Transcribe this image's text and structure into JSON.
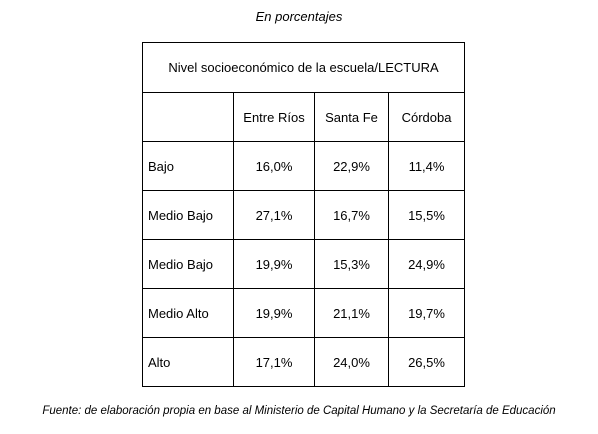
{
  "caption": "En porcentajes",
  "table": {
    "title": "Nivel socioeconómico de la escuela/LECTURA",
    "columns": [
      "",
      "Entre Ríos",
      "Santa Fe",
      "Córdoba"
    ],
    "rows": [
      {
        "label": "Bajo",
        "values": [
          "16,0%",
          "22,9%",
          "11,4%"
        ]
      },
      {
        "label": "Medio Bajo",
        "values": [
          "27,1%",
          "16,7%",
          "15,5%"
        ]
      },
      {
        "label": "Medio Bajo",
        "values": [
          "19,9%",
          "15,3%",
          "24,9%"
        ]
      },
      {
        "label": "Medio Alto",
        "values": [
          "19,9%",
          "21,1%",
          "19,7%"
        ]
      },
      {
        "label": "Alto",
        "values": [
          "17,1%",
          "24,0%",
          "26,5%"
        ]
      }
    ]
  },
  "source": "Fuente: de elaboración propia en base al Ministerio de Capital Humano y la Secretaría de Educación"
}
